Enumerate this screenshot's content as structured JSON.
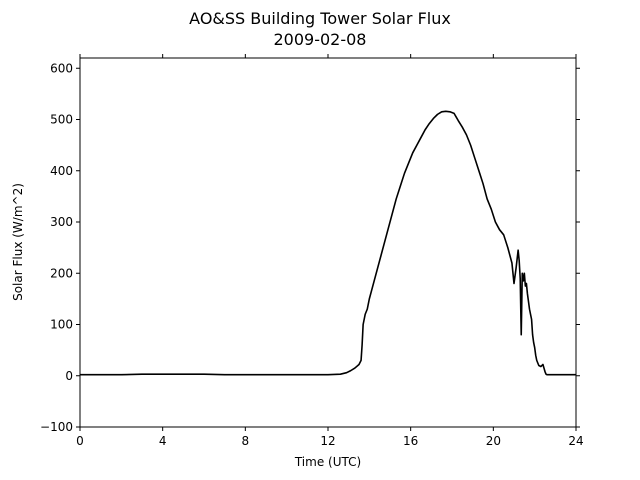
{
  "chart_data": {
    "type": "line",
    "title": "AO&SS Building Tower Solar Flux",
    "subtitle": "2009-02-08",
    "xlabel": "Time (UTC)",
    "ylabel": "Solar Flux (W/m^2)",
    "xlim": [
      0,
      24
    ],
    "ylim": [
      -100,
      620
    ],
    "xticks": [
      0,
      4,
      8,
      12,
      16,
      20,
      24
    ],
    "yticks": [
      -100,
      0,
      100,
      200,
      300,
      400,
      500,
      600
    ],
    "xtick_labels": [
      "0",
      "4",
      "8",
      "12",
      "16",
      "20",
      "24"
    ],
    "ytick_labels": [
      "−100",
      "0",
      "100",
      "200",
      "300",
      "400",
      "500",
      "600"
    ],
    "grid": false,
    "line_color": "#000000",
    "series": [
      {
        "x": [
          0,
          1,
          2,
          3,
          3.5,
          4,
          5,
          6,
          7,
          8,
          9,
          10,
          11,
          12,
          12.6,
          12.9,
          13.1,
          13.3,
          13.5,
          13.6,
          13.65,
          13.7,
          13.8,
          13.9,
          14.0,
          14.1,
          14.3,
          14.5,
          14.7,
          14.9,
          15.1,
          15.3,
          15.5,
          15.7,
          15.9,
          16.1,
          16.3,
          16.5,
          16.7,
          16.9,
          17.1,
          17.3,
          17.5,
          17.7,
          17.9,
          18.1,
          18.2,
          18.3,
          18.5,
          18.7,
          18.9,
          19.1,
          19.3,
          19.5,
          19.7,
          19.9,
          20.1,
          20.3,
          20.5,
          20.7,
          20.9,
          21.0,
          21.1,
          21.2,
          21.25,
          21.3,
          21.35,
          21.4,
          21.45,
          21.5,
          21.55,
          21.6,
          21.65,
          21.7,
          21.75,
          21.8,
          21.85,
          21.9,
          21.95,
          22.0,
          22.05,
          22.1,
          22.2,
          22.3,
          22.4,
          22.45,
          22.5,
          22.55,
          22.6,
          22.7,
          22.8,
          22.9,
          23.0,
          23.1,
          23.2,
          23.4,
          23.7,
          24
        ],
        "y": [
          2,
          2,
          2,
          3,
          3,
          3,
          3,
          3,
          2,
          2,
          2,
          2,
          2,
          2,
          3,
          6,
          10,
          15,
          22,
          30,
          60,
          100,
          120,
          130,
          150,
          165,
          195,
          225,
          255,
          285,
          315,
          345,
          370,
          395,
          415,
          435,
          450,
          465,
          480,
          492,
          502,
          510,
          515,
          516,
          515,
          512,
          505,
          498,
          485,
          470,
          450,
          425,
          400,
          375,
          345,
          325,
          300,
          285,
          275,
          250,
          220,
          180,
          210,
          245,
          225,
          190,
          80,
          200,
          185,
          200,
          175,
          180,
          160,
          145,
          130,
          120,
          110,
          80,
          65,
          55,
          40,
          30,
          20,
          18,
          22,
          15,
          8,
          3,
          2,
          2,
          2,
          2,
          2,
          2,
          2,
          2,
          2,
          2
        ],
        "x_fix_note": "",
        "unused": null
      }
    ]
  }
}
